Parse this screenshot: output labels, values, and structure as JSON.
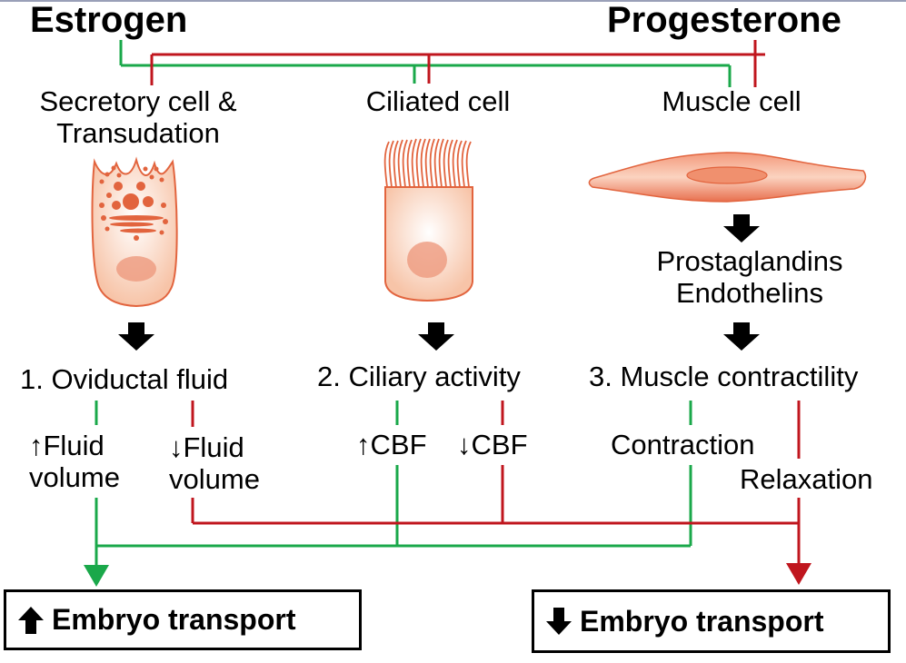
{
  "hormones": {
    "estrogen": "Estrogen",
    "progesterone": "Progesterone"
  },
  "cells": {
    "secretory": [
      "Secretory cell &",
      "Transudation"
    ],
    "ciliated": "Ciliated cell",
    "muscle": "Muscle cell"
  },
  "mediators": [
    "Prostaglandins",
    "Endothelins"
  ],
  "outcomes": {
    "fluid": "1. Oviductal fluid",
    "ciliary": "2. Ciliary activity",
    "muscle": "3. Muscle contractility"
  },
  "effects": {
    "fluid_up": [
      "↑Fluid",
      "volume"
    ],
    "fluid_down": [
      "↓Fluid",
      "volume"
    ],
    "cbf_up": "↑CBF",
    "cbf_down": "↓CBF",
    "contraction": "Contraction",
    "relaxation": "Relaxation"
  },
  "results": {
    "increase": "Embryo transport",
    "decrease": "Embryo transport"
  },
  "colors": {
    "green": "#1aa84a",
    "red": "#c0161e",
    "cell": "#e2643e"
  }
}
